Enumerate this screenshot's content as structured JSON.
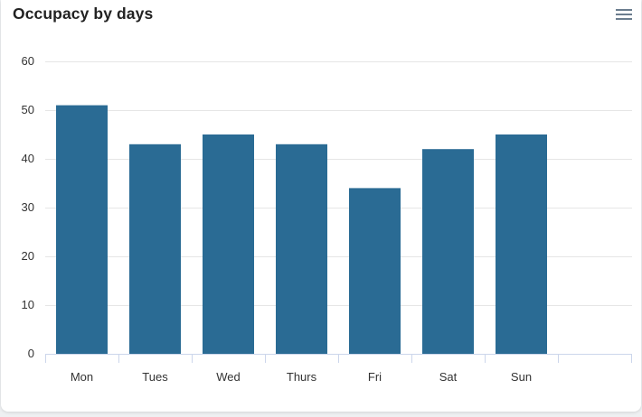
{
  "header": {
    "title": "Occupacy by days",
    "menu_icon": "hamburger-menu-icon"
  },
  "colors": {
    "bar": "#266892",
    "grid": "#e6e6e6",
    "axis": "#ccd6eb"
  },
  "chart_data": {
    "type": "bar",
    "title": "Occupacy by days",
    "xlabel": "",
    "ylabel": "",
    "categories": [
      "Mon",
      "Tues",
      "Wed",
      "Thurs",
      "Fri",
      "Sat",
      "Sun"
    ],
    "values": [
      51,
      43,
      45,
      43,
      34,
      42,
      45
    ],
    "ylim": [
      0,
      60
    ],
    "yticks": [
      0,
      10,
      20,
      30,
      40,
      50,
      60
    ],
    "grid": true,
    "legend": false
  }
}
